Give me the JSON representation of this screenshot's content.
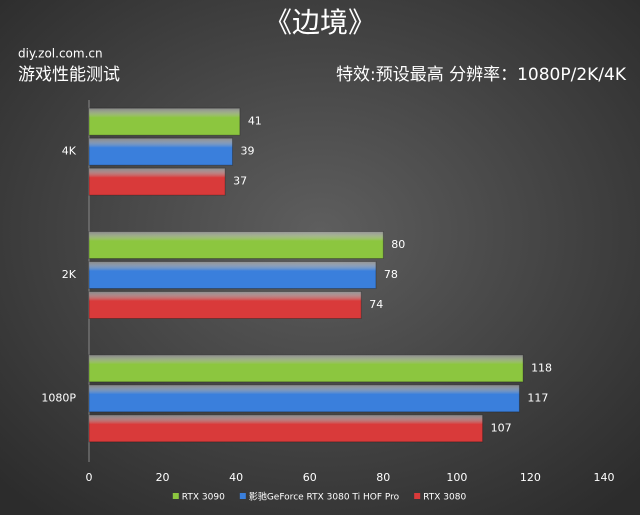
{
  "chart_data": {
    "type": "bar",
    "orientation": "horizontal",
    "title": "《边境》",
    "source": "diy.zol.com.cn",
    "subtitle": "游戏性能测试",
    "note": "特效:预设最高  分辨率：1080P/2K/4K",
    "categories": [
      "4K",
      "2K",
      "1080P"
    ],
    "series": [
      {
        "name": "RTX 3090",
        "color": "#8cc63f",
        "values": [
          41,
          80,
          118
        ]
      },
      {
        "name": "影驰GeForce RTX 3080 Ti HOF Pro",
        "color": "#3a7fdc",
        "values": [
          39,
          78,
          117
        ]
      },
      {
        "name": "RTX 3080",
        "color": "#d93a3a",
        "values": [
          37,
          74,
          107
        ]
      }
    ],
    "xlim": [
      0,
      140
    ],
    "xticks": [
      0,
      20,
      40,
      60,
      80,
      100,
      120,
      140
    ],
    "grid": false,
    "legend": "bottom"
  }
}
